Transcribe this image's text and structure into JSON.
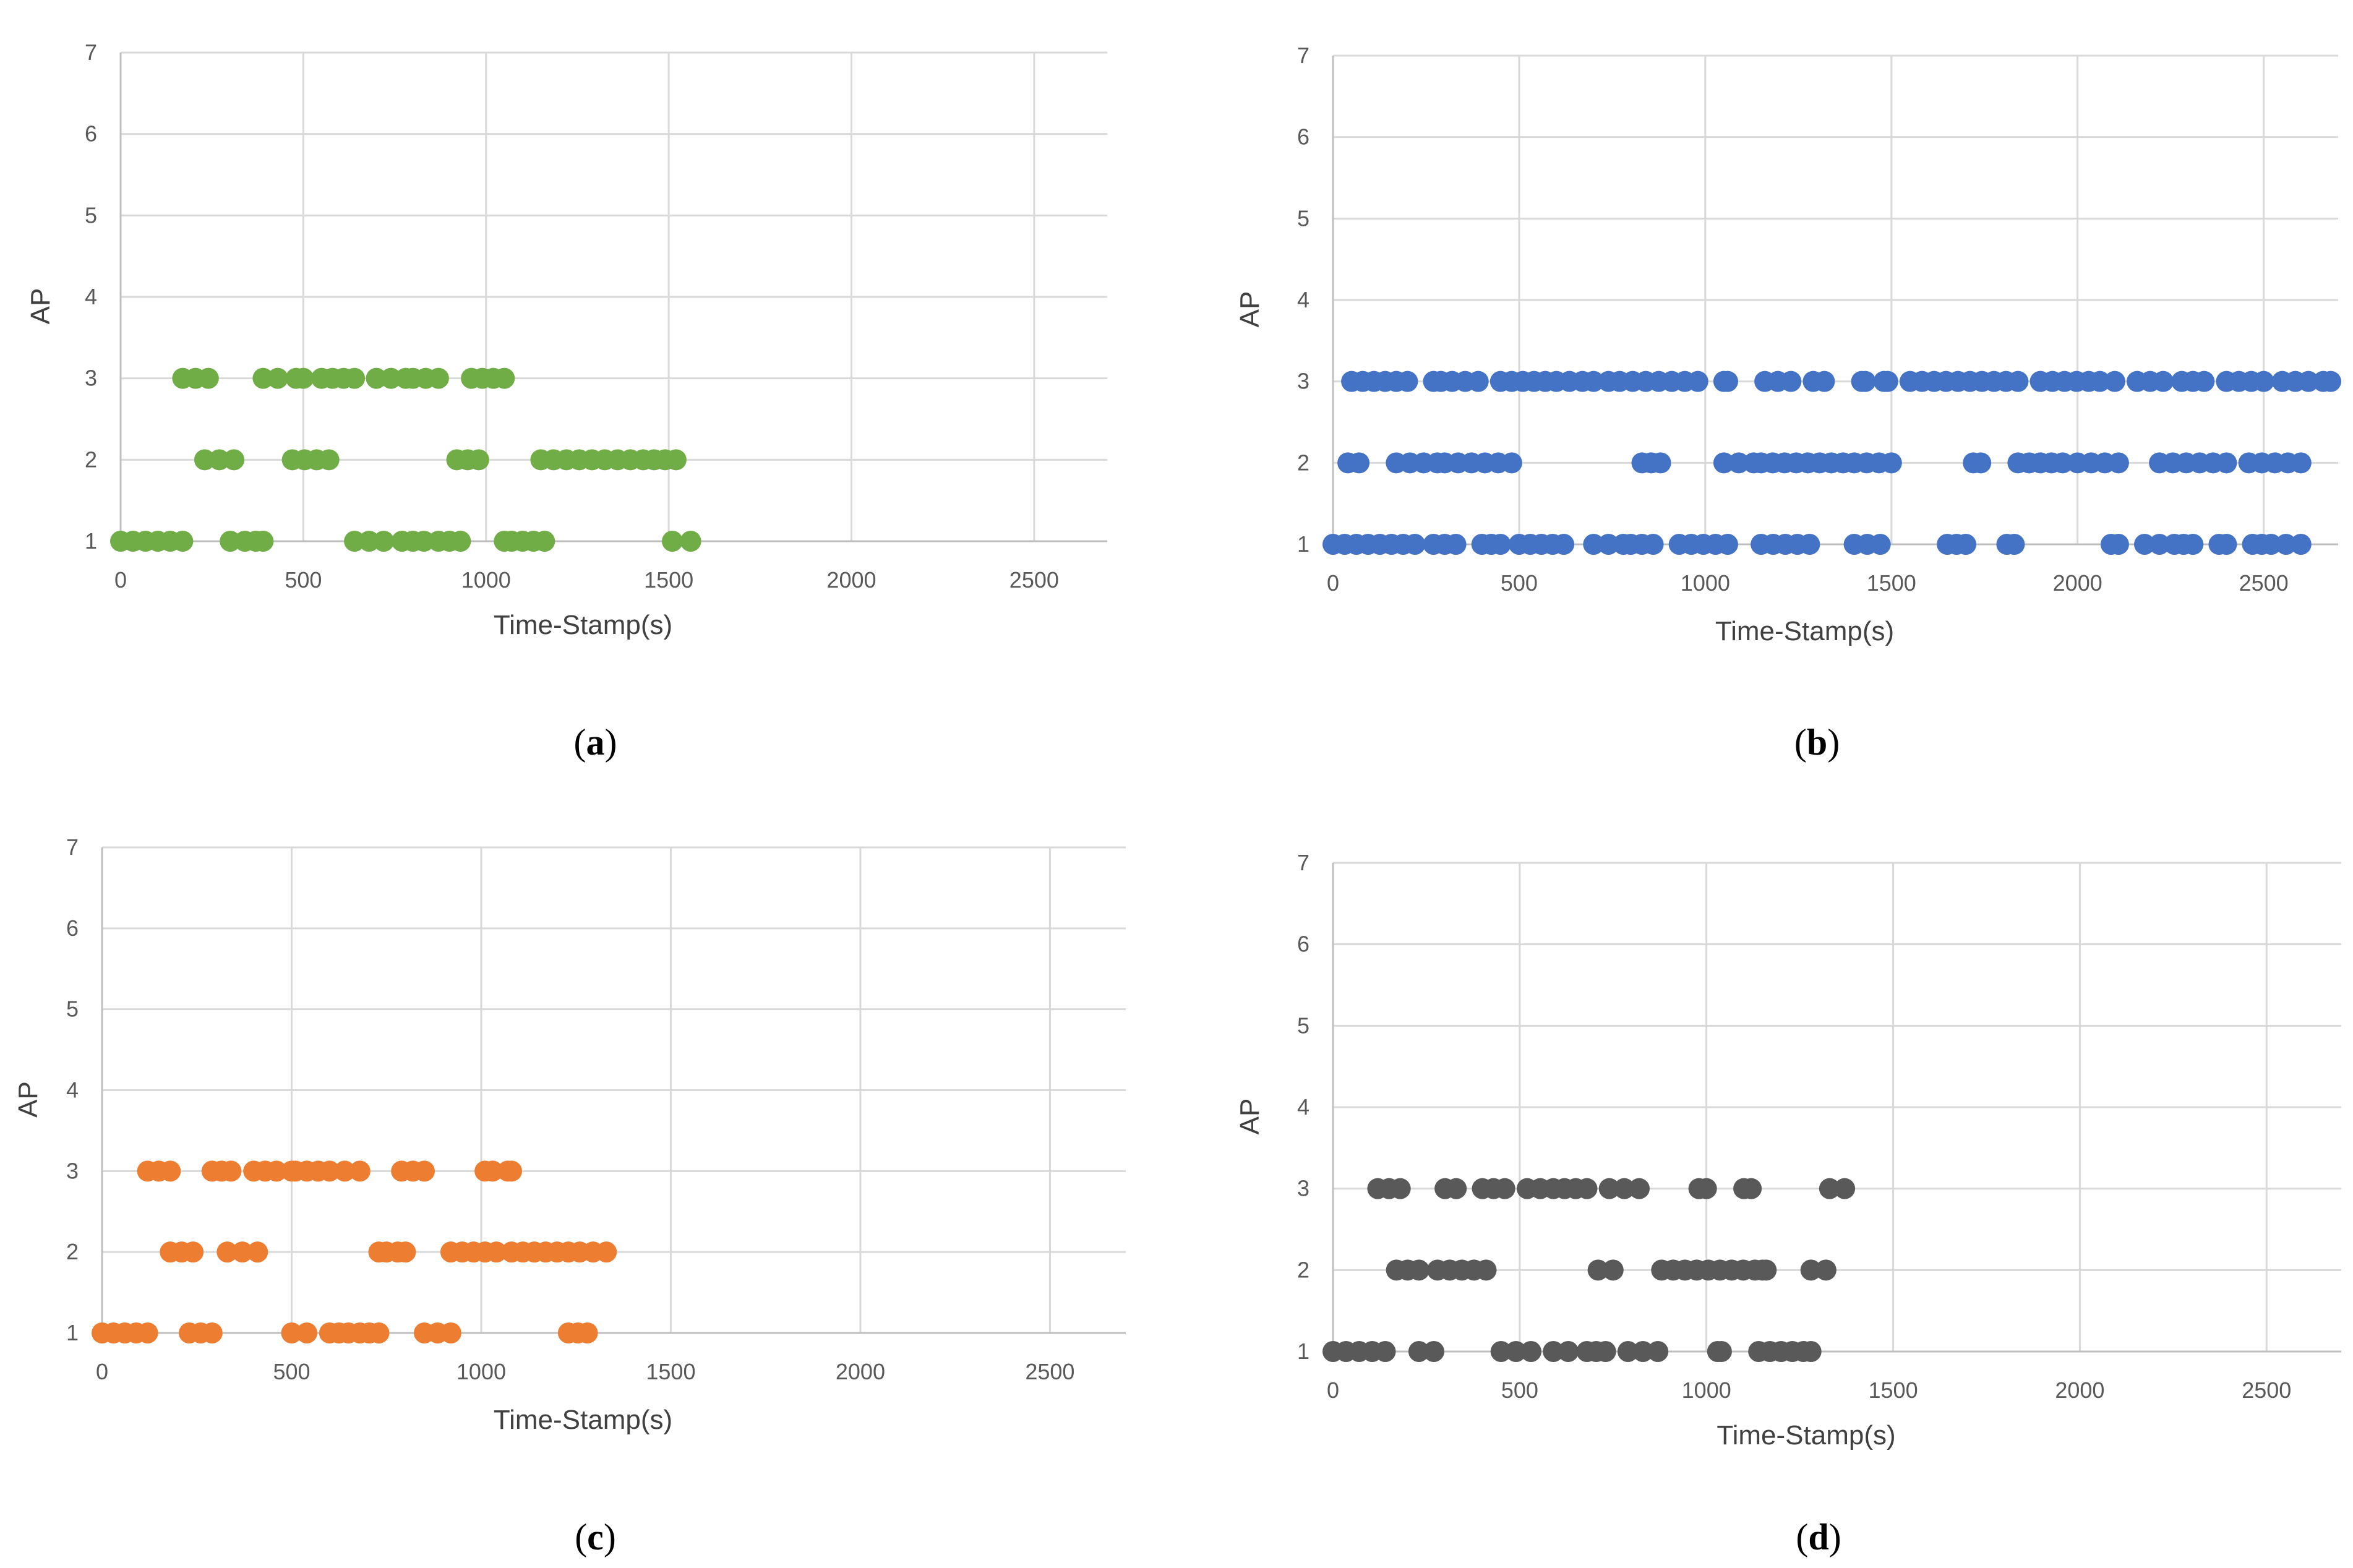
{
  "chart_data": [
    {
      "type": "scatter",
      "panel_label": "a",
      "color": "#70AD47",
      "xlabel": "Time-Stamp(s)",
      "ylabel": "AP",
      "xlim": [
        0,
        2700
      ],
      "ylim": [
        1,
        7
      ],
      "xticks": [
        0,
        500,
        1000,
        1500,
        2000,
        2500
      ],
      "yticks": [
        1,
        2,
        3,
        4,
        5,
        6,
        7
      ],
      "grid": true,
      "series": [
        {
          "name": "AP 1",
          "y": 1,
          "segments": [
            [
              0,
              170
            ],
            [
              300,
              340
            ],
            [
              370,
              390
            ],
            [
              640,
              720
            ],
            [
              770,
              830
            ],
            [
              870,
              930
            ],
            [
              1050,
              1070
            ],
            [
              1100,
              1160
            ],
            [
              1510,
              1560
            ]
          ]
        },
        {
          "name": "AP 2",
          "y": 2,
          "segments": [
            [
              230,
              310
            ],
            [
              470,
              570
            ],
            [
              920,
              980
            ],
            [
              1150,
              1430
            ],
            [
              1460,
              1520
            ]
          ]
        },
        {
          "name": "AP 3",
          "y": 3,
          "segments": [
            [
              170,
              240
            ],
            [
              390,
              430
            ],
            [
              480,
              500
            ],
            [
              550,
              640
            ],
            [
              700,
              780
            ],
            [
              800,
              870
            ],
            [
              960,
              1050
            ]
          ]
        }
      ]
    },
    {
      "type": "scatter",
      "panel_label": "b",
      "color": "#4472C4",
      "xlabel": "Time-Stamp(s)",
      "ylabel": "AP",
      "xlim": [
        0,
        2700
      ],
      "ylim": [
        1,
        7
      ],
      "xticks": [
        0,
        500,
        1000,
        1500,
        2000,
        2500
      ],
      "yticks": [
        1,
        2,
        3,
        4,
        5,
        6,
        7
      ],
      "grid": true,
      "series": [
        {
          "name": "AP 1",
          "y": 1,
          "segments": [
            [
              0,
              220
            ],
            [
              270,
              330
            ],
            [
              400,
              450
            ],
            [
              500,
              620
            ],
            [
              700,
              780
            ],
            [
              800,
              860
            ],
            [
              930,
              1060
            ],
            [
              1150,
              1280
            ],
            [
              1400,
              1470
            ],
            [
              1650,
              1700
            ],
            [
              1810,
              1830
            ],
            [
              2090,
              2110
            ],
            [
              2180,
              2220
            ],
            [
              2260,
              2310
            ],
            [
              2380,
              2400
            ],
            [
              2470,
              2520
            ],
            [
              2560,
              2600
            ]
          ]
        },
        {
          "name": "AP 2",
          "y": 2,
          "segments": [
            [
              40,
              70
            ],
            [
              170,
              280
            ],
            [
              300,
              480
            ],
            [
              830,
              880
            ],
            [
              1050,
              1130
            ],
            [
              1150,
              1370
            ],
            [
              1400,
              1500
            ],
            [
              1720,
              1740
            ],
            [
              1840,
              1960
            ],
            [
              2000,
              2110
            ],
            [
              2220,
              2400
            ],
            [
              2460,
              2600
            ]
          ]
        },
        {
          "name": "AP 3",
          "y": 3,
          "segments": [
            [
              50,
              200
            ],
            [
              270,
              290
            ],
            [
              320,
              390
            ],
            [
              450,
              570
            ],
            [
              600,
              670
            ],
            [
              700,
              740
            ],
            [
              770,
              980
            ],
            [
              1050,
              1060
            ],
            [
              1160,
              1230
            ],
            [
              1290,
              1320
            ],
            [
              1420,
              1430
            ],
            [
              1480,
              1490
            ],
            [
              1550,
              1840
            ],
            [
              1900,
              2030
            ],
            [
              2060,
              2100
            ],
            [
              2160,
              2230
            ],
            [
              2280,
              2340
            ],
            [
              2400,
              2500
            ],
            [
              2550,
              2620
            ],
            [
              2660,
              2680
            ]
          ]
        }
      ]
    },
    {
      "type": "scatter",
      "panel_label": "c",
      "color": "#ED7D31",
      "xlabel": "Time-Stamp(s)",
      "ylabel": "AP",
      "xlim": [
        0,
        2700
      ],
      "ylim": [
        1,
        7
      ],
      "xticks": [
        0,
        500,
        1000,
        1500,
        2000,
        2500
      ],
      "yticks": [
        1,
        2,
        3,
        4,
        5,
        6,
        7
      ],
      "grid": true,
      "series": [
        {
          "name": "AP 1",
          "y": 1,
          "segments": [
            [
              0,
              120
            ],
            [
              230,
              290
            ],
            [
              500,
              540
            ],
            [
              600,
              650
            ],
            [
              680,
              730
            ],
            [
              850,
              920
            ],
            [
              1230,
              1280
            ]
          ]
        },
        {
          "name": "AP 2",
          "y": 2,
          "segments": [
            [
              180,
              240
            ],
            [
              330,
              410
            ],
            [
              730,
              750
            ],
            [
              780,
              800
            ],
            [
              920,
              1040
            ],
            [
              1080,
              1230
            ],
            [
              1260,
              1330
            ]
          ]
        },
        {
          "name": "AP 3",
          "y": 3,
          "segments": [
            [
              120,
              180
            ],
            [
              290,
              340
            ],
            [
              400,
              460
            ],
            [
              500,
              510
            ],
            [
              540,
              600
            ],
            [
              640,
              680
            ],
            [
              790,
              850
            ],
            [
              1010,
              1030
            ],
            [
              1070,
              1080
            ]
          ]
        }
      ]
    },
    {
      "type": "scatter",
      "panel_label": "d",
      "color": "#595959",
      "xlabel": "Time-Stamp(s)",
      "ylabel": "AP",
      "xlim": [
        0,
        2700
      ],
      "ylim": [
        1,
        7
      ],
      "xticks": [
        0,
        500,
        1000,
        1500,
        2000,
        2500
      ],
      "yticks": [
        1,
        2,
        3,
        4,
        5,
        6,
        7
      ],
      "grid": true,
      "series": [
        {
          "name": "AP 1",
          "y": 1,
          "segments": [
            [
              0,
              140
            ],
            [
              230,
              270
            ],
            [
              450,
              530
            ],
            [
              590,
              630
            ],
            [
              680,
              730
            ],
            [
              790,
              870
            ],
            [
              1030,
              1040
            ],
            [
              1140,
              1230
            ],
            [
              1260,
              1280
            ]
          ]
        },
        {
          "name": "AP 2",
          "y": 2,
          "segments": [
            [
              170,
              230
            ],
            [
              280,
              410
            ],
            [
              710,
              750
            ],
            [
              880,
              1130
            ],
            [
              1150,
              1160
            ],
            [
              1280,
              1320
            ]
          ]
        },
        {
          "name": "AP 3",
          "y": 3,
          "segments": [
            [
              120,
              180
            ],
            [
              300,
              330
            ],
            [
              400,
              460
            ],
            [
              520,
              590
            ],
            [
              620,
              680
            ],
            [
              740,
              820
            ],
            [
              980,
              1000
            ],
            [
              1100,
              1120
            ],
            [
              1330,
              1370
            ]
          ]
        }
      ]
    }
  ]
}
